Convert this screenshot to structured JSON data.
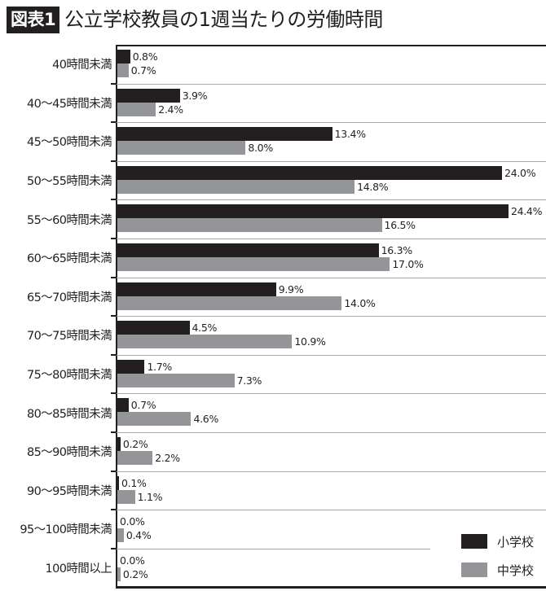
{
  "header": {
    "badge": "図表1",
    "title": "公立学校教員の1週当たりの労働時間"
  },
  "colors": {
    "elementary": "#231f20",
    "junior_high": "#939598",
    "gridline": "#a7a9ac",
    "axis": "#231f20"
  },
  "legend": [
    {
      "label": "小学校",
      "color": "#231f20"
    },
    {
      "label": "中学校",
      "color": "#939598"
    }
  ],
  "chart_data": {
    "type": "bar",
    "orientation": "horizontal",
    "title": "図表1 公立学校教員の1週当たりの労働時間",
    "xlabel": "",
    "ylabel": "",
    "unit": "%",
    "grid": false,
    "legend_position": "bottom-right",
    "categories": [
      "40時間未満",
      "40〜45時間未満",
      "45〜50時間未満",
      "50〜55時間未満",
      "55〜60時間未満",
      "60〜65時間未満",
      "65〜70時間未満",
      "70〜75時間未満",
      "75〜80時間未満",
      "80〜85時間未満",
      "85〜90時間未満",
      "90〜95時間未満",
      "95〜100時間未満",
      "100時間以上"
    ],
    "series": [
      {
        "name": "小学校",
        "color": "#231f20",
        "values": [
          0.8,
          3.9,
          13.4,
          24.0,
          24.4,
          16.3,
          9.9,
          4.5,
          1.7,
          0.7,
          0.2,
          0.1,
          0.0,
          0.0
        ],
        "labels": [
          "0.8%",
          "3.9%",
          "13.4%",
          "24.0%",
          "24.4%",
          "16.3%",
          "9.9%",
          "4.5%",
          "1.7%",
          "0.7%",
          "0.2%",
          "0.1%",
          "0.0%",
          "0.0%"
        ]
      },
      {
        "name": "中学校",
        "color": "#939598",
        "values": [
          0.7,
          2.4,
          8.0,
          14.8,
          16.5,
          17.0,
          14.0,
          10.9,
          7.3,
          4.6,
          2.2,
          1.1,
          0.4,
          0.2
        ],
        "labels": [
          "0.7%",
          "2.4%",
          "8.0%",
          "14.8%",
          "16.5%",
          "17.0%",
          "14.0%",
          "10.9%",
          "7.3%",
          "4.6%",
          "2.2%",
          "1.1%",
          "0.4%",
          "0.2%"
        ]
      }
    ],
    "xlim": [
      0,
      26
    ]
  }
}
